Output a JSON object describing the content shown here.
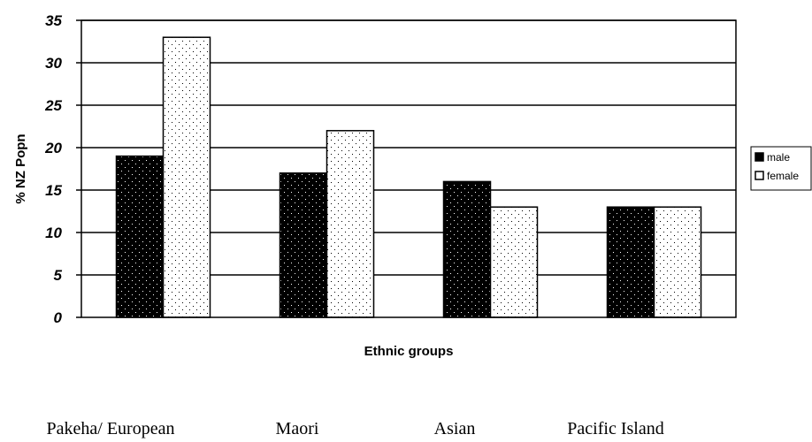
{
  "chart_data": {
    "type": "bar",
    "categories": [
      "Pakeha/ European",
      "Maori",
      "Asian",
      "Pacific Island"
    ],
    "series": [
      {
        "name": "male",
        "values": [
          19,
          17,
          16,
          13
        ],
        "pattern": "dense-dots-on-black",
        "color": "#000000"
      },
      {
        "name": "female",
        "values": [
          33,
          22,
          13,
          13
        ],
        "pattern": "sparse-dots-on-white",
        "color": "#ffffff"
      }
    ],
    "xlabel": "Ethnic groups",
    "ylabel": "% NZ Popn",
    "ylim": [
      0,
      35
    ],
    "yticks": [
      0,
      5,
      10,
      15,
      20,
      25,
      30,
      35
    ],
    "grid": true,
    "legend_position": "right"
  }
}
